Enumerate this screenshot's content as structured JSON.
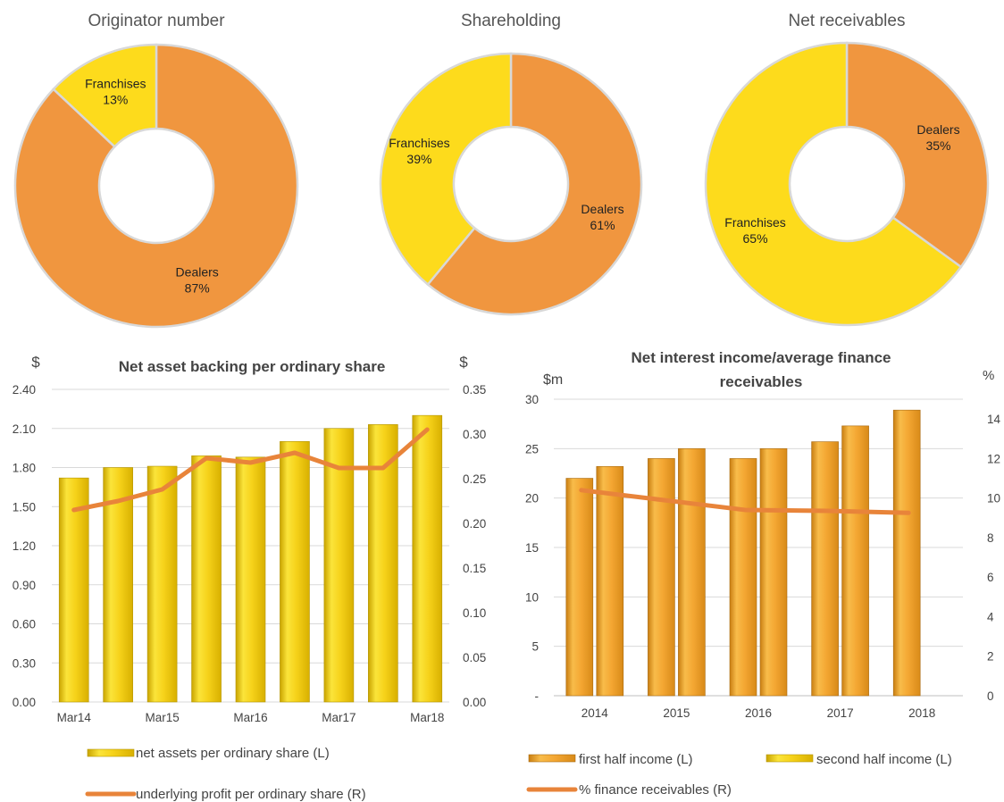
{
  "colors": {
    "dealers": "#F0963F",
    "franchises": "#FDDB1C",
    "bar_yellow": "#F6D21A",
    "bar_orange": "#F4A733",
    "line_orange": "#E8843A",
    "axis_text": "#444444",
    "grid": "#D9D9D9"
  },
  "chart_data": [
    {
      "type": "pie",
      "title": "Originator number",
      "slices": [
        {
          "label": "Dealers",
          "pct_label": "87%",
          "value": 87,
          "color": "dealers"
        },
        {
          "label": "Franchises",
          "pct_label": "13%",
          "value": 13,
          "color": "franchises"
        }
      ]
    },
    {
      "type": "pie",
      "title": "Shareholding",
      "slices": [
        {
          "label": "Dealers",
          "pct_label": "61%",
          "value": 61,
          "color": "dealers"
        },
        {
          "label": "Franchises",
          "pct_label": "39%",
          "value": 39,
          "color": "franchises"
        }
      ]
    },
    {
      "type": "pie",
      "title": "Net receivables",
      "slices": [
        {
          "label": "Dealers",
          "pct_label": "35%",
          "value": 35,
          "color": "dealers"
        },
        {
          "label": "Franchises",
          "pct_label": "65%",
          "value": 65,
          "color": "franchises"
        }
      ]
    },
    {
      "type": "bar",
      "title": "Net asset backing per ordinary share",
      "ylabel_left": "$",
      "ylabel_right": "$",
      "ylim_left": [
        0,
        2.4
      ],
      "ylim_right": [
        0,
        0.35
      ],
      "left_ticks": [
        "0.00",
        "0.30",
        "0.60",
        "0.90",
        "1.20",
        "1.50",
        "1.80",
        "2.10",
        "2.40"
      ],
      "right_ticks": [
        "0.00",
        "0.05",
        "0.10",
        "0.15",
        "0.20",
        "0.25",
        "0.30",
        "0.35"
      ],
      "x_tick_labels": [
        "Mar14",
        "Mar15",
        "Mar16",
        "Mar17",
        "Mar18"
      ],
      "x_tick_positions": [
        0,
        2,
        4,
        6,
        8
      ],
      "grid": true,
      "series": [
        {
          "name": "net assets per ordinary share (L)",
          "kind": "bar",
          "axis": "left",
          "values": [
            1.72,
            1.8,
            1.81,
            1.89,
            1.88,
            2.0,
            2.1,
            2.13,
            2.2
          ]
        },
        {
          "name": "underlying profit per ordinary share (R)",
          "kind": "line",
          "axis": "right",
          "values": [
            0.215,
            0.225,
            0.238,
            0.273,
            0.268,
            0.279,
            0.262,
            0.262,
            0.305
          ]
        }
      ]
    },
    {
      "type": "bar",
      "title_lines": [
        "Net interest income/average finance",
        "receivables"
      ],
      "ylabel_left": "$m",
      "ylabel_right": "%",
      "ylim_left": [
        0,
        30
      ],
      "ylim_right": [
        0,
        15
      ],
      "left_ticks": [
        "-",
        "5",
        "10",
        "15",
        "20",
        "25",
        "30"
      ],
      "right_ticks": [
        "0",
        "2",
        "4",
        "6",
        "8",
        "10",
        "12",
        "14"
      ],
      "categories": [
        "2014",
        "2015",
        "2016",
        "2017",
        "2018"
      ],
      "grid": true,
      "series": [
        {
          "name": "first half income (L)",
          "kind": "bar",
          "axis": "left",
          "values": [
            22.0,
            24.0,
            24.0,
            25.7,
            28.9
          ]
        },
        {
          "name": "second half income (L)",
          "kind": "bar",
          "axis": "left",
          "values": [
            23.2,
            25.0,
            25.0,
            27.3,
            null
          ]
        },
        {
          "name": "% finance receivables (R)",
          "kind": "line",
          "axis": "right",
          "values": [
            10.4,
            9.9,
            9.4,
            9.35,
            9.25
          ]
        }
      ]
    }
  ]
}
